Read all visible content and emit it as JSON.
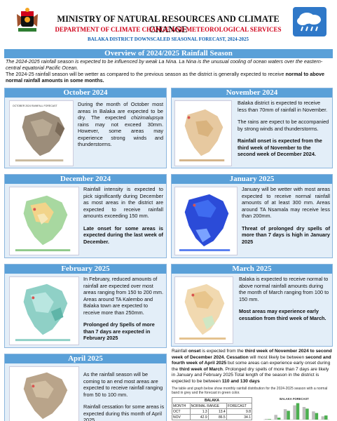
{
  "header": {
    "ministry": "MINISTRY OF NATURAL RESOURCES AND CLIMATE CHANGE",
    "department": "DEPARTMENT OF CLIMATE CHANGE AND METEOROLOGICAL SERVICES",
    "forecast": "BALAKA DISTRICT DOWNSCALED SEASONAL FORECAST, 2024-2025"
  },
  "overview": {
    "title": "Overview of 2024/2025 Rainfall Season",
    "line1": "The 2024-2025 rainfall season is expected to be influenced by weak La Nina. La Nina is the unusual cooling of ocean waters over the eastern-central equatorial Pacific Ocean.",
    "line2": "The 2024-25 rainfall season will be wetter as compared to the previous season as the district is generally expected to receive",
    "line2_bold": "normal to above normal rainfall amounts in some months."
  },
  "panels": {
    "oct": {
      "title": "October 2024",
      "map_title": "OCTOBER 2024 RAINFALL FORECAST",
      "p1a": "During the month of October most areas in Balaka are expected to be dry. The expected",
      "p1b": "chizimalupsya",
      "p1c": "rains may not exceed 30mm. However, some areas may experience strong winds and thunderstorms."
    },
    "nov": {
      "title": "November 2024",
      "p1": "Balaka district is expected to receive less than 70mm of rainfall in November.",
      "p2": "The rains are expect to be accompanied by strong winds and thunderstorms.",
      "p3": "Rainfall onset is expected from the third week of November to the second week of December 2024."
    },
    "dec": {
      "title": "December 2024",
      "p1": "Rainfall intensity is expected to pick significantly during December as most areas in the district are expected to receive rainfall amounts exceeding 150 mm.",
      "p2": "Late onset for some areas is expected during the last week of December."
    },
    "jan": {
      "title": "January 2025",
      "p1": "January will be wetter with most areas expected to receive normal rainfall amounts of at least 300 mm. Areas around TA Nsamala may receive less than 200mm.",
      "p2": "Threat of prolonged dry spells of more than 7 days is high in January 2025"
    },
    "feb": {
      "title": "February 2025",
      "p1": "In February, reduced amounts of rainfall are expected over most areas ranging from 150 to 200 mm. Areas around TA Kalembo and Balaka town are expected to receive more than 250mm.",
      "p2": "Prolonged dry Spells of more than 7 days are expected in February 2025"
    },
    "mar": {
      "title": "March 2025",
      "p1": "Balaka is expected to receive normal to above normal rainfall amounts during the month of March ranging from 100 to 150 mm.",
      "p2": "Most areas may experience early cessation from third week of March."
    },
    "apr": {
      "title": "April 2025",
      "p1": "As the rainfall season will be coming to an end most areas are expected to receive rainfall ranging from 50 to 100 mm.",
      "p2": "Rainfall cessation for some areas is expected during this month of April 2025"
    }
  },
  "notes": {
    "n1a": "Rainfall",
    "n1b": "onset",
    "n1c": "is expected from the",
    "n1d": "third week of November 2024 to second week of December 2024.",
    "n1e": "Cessation",
    "n1f": "will most likely be between",
    "n1g": "second and fourth week of April 2025",
    "n1h": "but some areas can experience early onset during the",
    "n1i": "third week of March",
    "n1j": ". Prolonged dry spells of more than 7 days are likely in January and February 2025 Total length of the season in the district is expected to be between",
    "n1k": "110 and 130 days",
    "small": "The table and graph below show monthly rainfall distribution for the 2024-2025 season with a normal band in grey and the forecast in green color."
  },
  "table": {
    "title": "BALAKA",
    "headers": [
      "MONTH",
      "NORMAL RANGE",
      "",
      "FORECAST"
    ],
    "rows": [
      [
        "OCT",
        "1.3",
        "13.4",
        "9.8"
      ],
      [
        "NOV",
        "42.9",
        "86.5",
        "34.1"
      ]
    ]
  },
  "chart_data": {
    "type": "bar",
    "title": "BALAKA FORECAST",
    "categories": [
      "OCT",
      "NOV",
      "DEC",
      "JAN",
      "FEB",
      "MAR",
      "APR"
    ],
    "series": [
      {
        "values": [
          13.4,
          86.5,
          190,
          260,
          230,
          150,
          60
        ]
      },
      {
        "values": [
          9.8,
          34.1,
          160,
          300,
          200,
          120,
          75
        ]
      }
    ],
    "colors": [
      "#bdbdbd",
      "#4caf50"
    ]
  },
  "colors": {
    "bar": "#5aa0d8",
    "panel": "#e3eef8",
    "red": "#d0021b",
    "blue": "#0b5db0"
  }
}
